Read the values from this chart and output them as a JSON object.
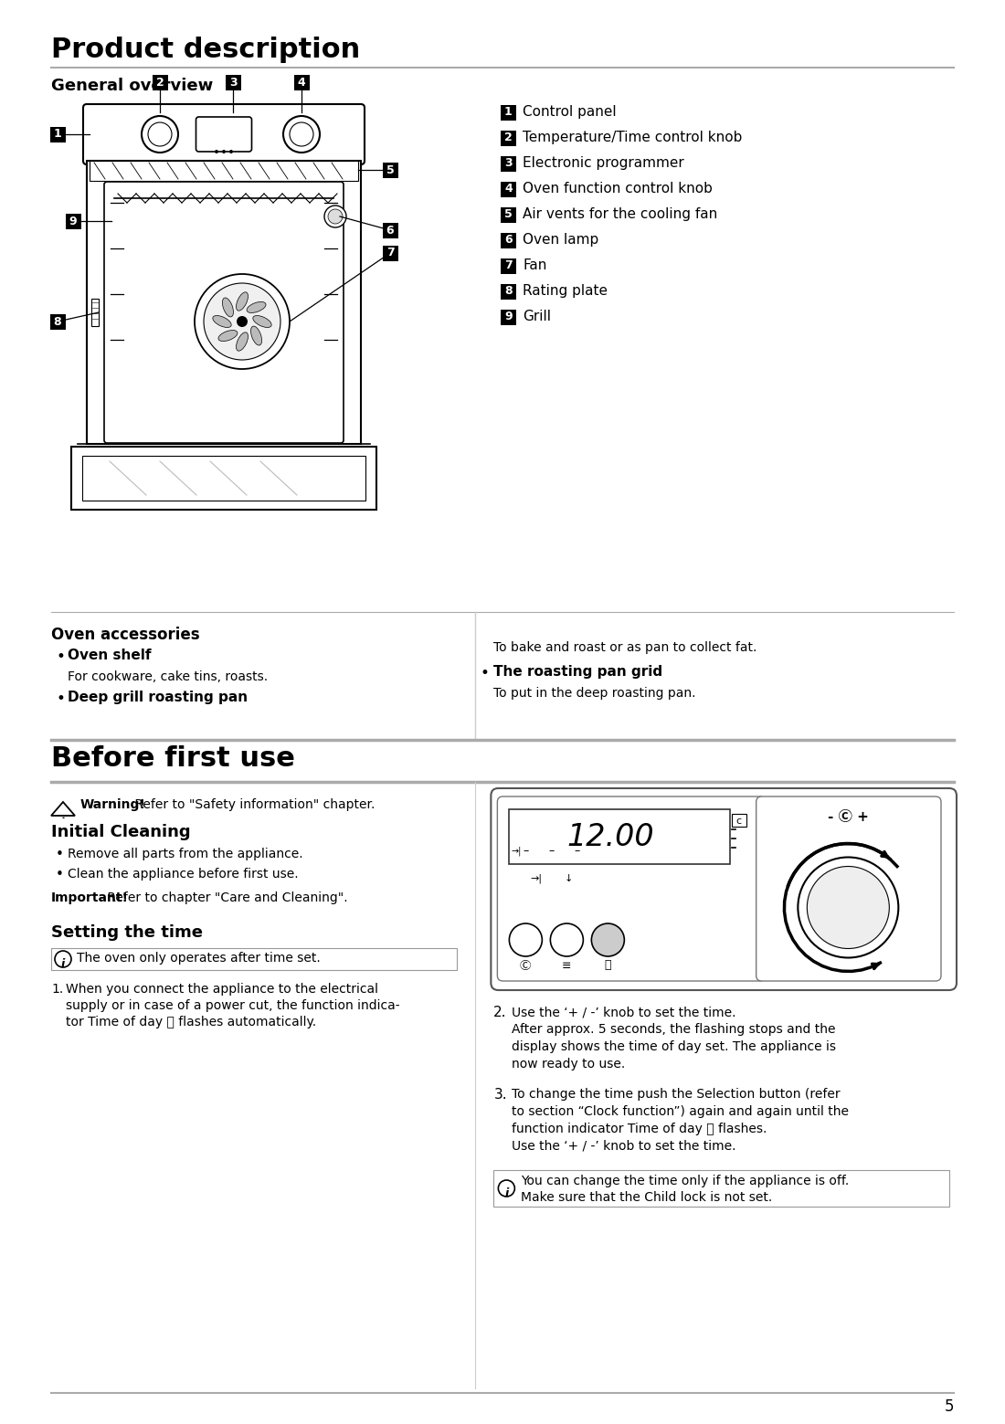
{
  "title": "Product description",
  "section1": "General overview",
  "before_first_use_title": "Before first use",
  "bg_color": "#ffffff",
  "numbered_items": [
    {
      "num": "1",
      "text": "Control panel"
    },
    {
      "num": "2",
      "text": "Temperature/Time control knob"
    },
    {
      "num": "3",
      "text": "Electronic programmer"
    },
    {
      "num": "4",
      "text": "Oven function control knob"
    },
    {
      "num": "5",
      "text": "Air vents for the cooling fan"
    },
    {
      "num": "6",
      "text": "Oven lamp"
    },
    {
      "num": "7",
      "text": "Fan"
    },
    {
      "num": "8",
      "text": "Rating plate"
    },
    {
      "num": "9",
      "text": "Grill"
    }
  ],
  "accessories_title": "Oven accessories",
  "acc_left": [
    {
      "bullet": true,
      "bold": true,
      "text": "Oven shelf"
    },
    {
      "bullet": false,
      "bold": false,
      "text": "For cookware, cake tins, roasts."
    },
    {
      "bullet": true,
      "bold": true,
      "text": "Deep grill roasting pan"
    }
  ],
  "acc_right": [
    {
      "bullet": false,
      "bold": false,
      "text": "To bake and roast or as pan to collect fat."
    },
    {
      "bullet": true,
      "bold": true,
      "text": "The roasting pan grid"
    },
    {
      "bullet": false,
      "bold": false,
      "text": "To put in the deep roasting pan."
    }
  ],
  "warning_text_bold": "Warning!",
  "warning_text_normal": " Refer to \"Safety information\" chapter.",
  "initial_cleaning_title": "Initial Cleaning",
  "initial_cleaning_items": [
    "Remove all parts from the appliance.",
    "Clean the appliance before first use."
  ],
  "important_bold": "Important!",
  "important_normal": " Refer to chapter \"Care and Cleaning\".",
  "setting_time_title": "Setting the time",
  "info_text1": "The oven only operates after time set.",
  "step1_lines": [
    "When you connect the appliance to the electrical",
    "supply or in case of a power cut, the function indica-",
    "tor Time of day ⓣ flashes automatically."
  ],
  "step2_lines": [
    "Use the ‘+ / -’ knob to set the time.",
    "After approx. 5 seconds, the flashing stops and the",
    "display shows the time of day set. The appliance is",
    "now ready to use."
  ],
  "step3_lines": [
    "To change the time push the Selection button (refer",
    "to section “Clock function”) again and again until the",
    "function indicator Time of day ⓣ flashes.",
    "Use the ‘+ / -’ knob to set the time."
  ],
  "info_text2_lines": [
    "You can change the time only if the appliance is off.",
    "Make sure that the Child lock is not set."
  ],
  "page_number": "5"
}
